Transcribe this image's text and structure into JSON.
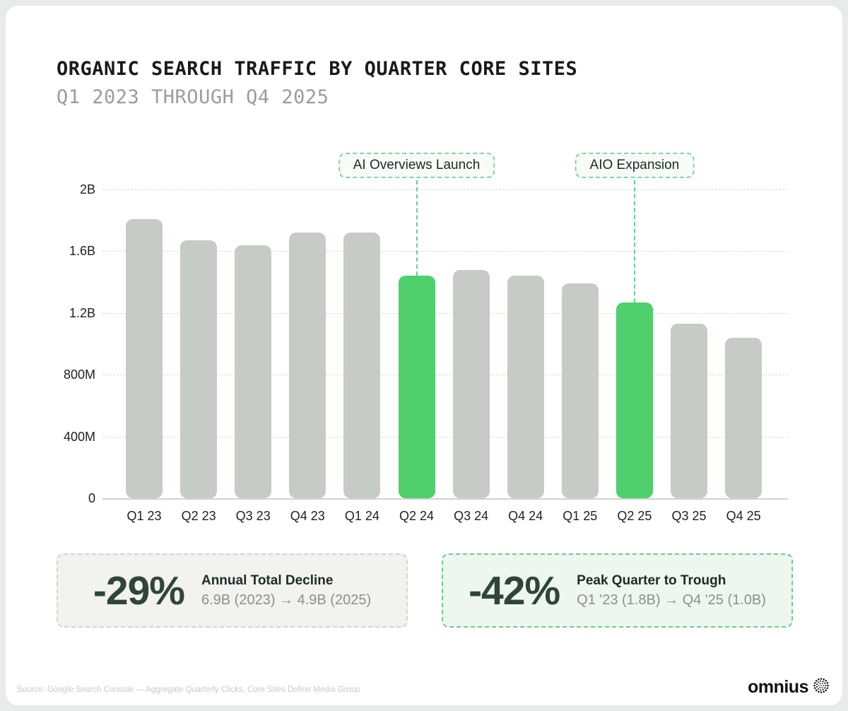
{
  "header": {
    "title": "ORGANIC SEARCH TRAFFIC BY QUARTER CORE SITES",
    "subtitle": "Q1 2023 THROUGH Q4 2025"
  },
  "chart_data": {
    "type": "bar",
    "title": "Organic Search Traffic by Quarter Core Sites",
    "categories": [
      "Q1 23",
      "Q2 23",
      "Q3 23",
      "Q4 23",
      "Q1 24",
      "Q2 24",
      "Q3 24",
      "Q4 24",
      "Q1 25",
      "Q2 25",
      "Q3 25",
      "Q4 25"
    ],
    "values": [
      1.81,
      1.67,
      1.64,
      1.72,
      1.72,
      1.44,
      1.48,
      1.44,
      1.39,
      1.27,
      1.13,
      1.04
    ],
    "unit": "billions of quarterly clicks",
    "ylim": [
      0,
      2
    ],
    "yticks": [
      {
        "label": "0",
        "value": 0
      },
      {
        "label": "400M",
        "value": 0.4
      },
      {
        "label": "800M",
        "value": 0.8
      },
      {
        "label": "1.2B",
        "value": 1.2
      },
      {
        "label": "1.6B",
        "value": 1.6
      },
      {
        "label": "2B",
        "value": 2.0
      }
    ],
    "highlight_indices": [
      5,
      9
    ],
    "grid": "dashed horizontal gridlines, solid zero axis",
    "legend": "none",
    "annotations": [
      {
        "label": "AI Overviews Launch",
        "target": "Q2 24"
      },
      {
        "label": "AIO Expansion",
        "target": "Q2 25"
      }
    ]
  },
  "colors": {
    "bar_default": "#c6cbc6",
    "bar_highlight": "#4fd06c",
    "annotation_green": "#6ecd91",
    "dark_green": "#2f4539"
  },
  "cards": [
    {
      "value": "-29%",
      "label": "Annual Total Decline",
      "detail": "6.9B (2023) → 4.9B (2025)"
    },
    {
      "value": "-42%",
      "label": "Peak Quarter to Trough",
      "detail": "Q1 '23 (1.8B) → Q4 '25 (1.0B)"
    }
  ],
  "footer": {
    "source": "Source: Google Search Console — Aggregate Quarterly Clicks, Core Sites Define Media Group",
    "logo_text": "omnius"
  }
}
